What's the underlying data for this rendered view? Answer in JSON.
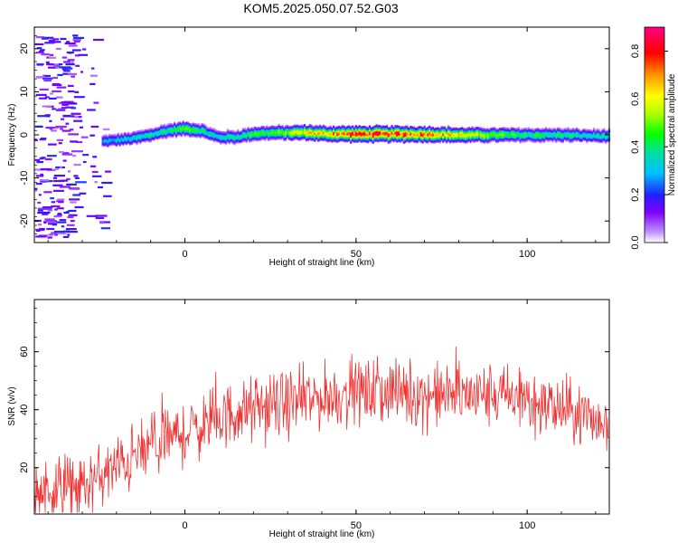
{
  "title": "KOM5.2025.050.07.52.G03",
  "chart_data": [
    {
      "type": "heatmap",
      "xlabel": "Height of straight line (km)",
      "ylabel": "Frequency (Hz)",
      "xlim": [
        -44,
        124
      ],
      "ylim": [
        -25,
        25
      ],
      "xticks": [
        0,
        50,
        100
      ],
      "yticks": [
        20,
        10,
        0,
        -10,
        -20
      ],
      "colorbar": {
        "label": "Normalized spectral amplitude",
        "range": [
          0,
          0.9
        ],
        "ticks": [
          "0.0",
          "0.2",
          "0.4",
          "0.6",
          "0.8"
        ],
        "tick_values": [
          0,
          0.2,
          0.4,
          0.6,
          0.8
        ]
      },
      "ridge": {
        "x": [
          -24,
          -20,
          -15,
          -10,
          -5,
          0,
          5,
          8,
          10,
          15,
          20,
          25,
          30,
          35,
          40,
          50,
          60,
          70,
          80,
          90,
          100,
          110,
          124
        ],
        "freq": [
          -1.5,
          -1.2,
          -0.8,
          0,
          1,
          1.5,
          1,
          0,
          -0.5,
          -0.5,
          0.3,
          0.5,
          0.5,
          0.6,
          0.3,
          0.2,
          0.2,
          0.2,
          0,
          0,
          0,
          0,
          -0.3
        ],
        "amplitude": [
          0.3,
          0.35,
          0.4,
          0.45,
          0.45,
          0.55,
          0.45,
          0.4,
          0.4,
          0.45,
          0.5,
          0.55,
          0.6,
          0.7,
          0.75,
          0.9,
          0.9,
          0.85,
          0.7,
          0.6,
          0.5,
          0.45,
          0.4
        ]
      }
    },
    {
      "type": "line",
      "xlabel": "Height of straight line (km)",
      "ylabel": "SNR (v/v)",
      "xlim": [
        -44,
        124
      ],
      "ylim": [
        4,
        78
      ],
      "xticks": [
        0,
        50,
        100
      ],
      "yticks": [
        20,
        40,
        60
      ],
      "color": "#f03030",
      "trend": {
        "x": [
          -44,
          -30,
          -20,
          -10,
          0,
          10,
          20,
          30,
          40,
          50,
          60,
          70,
          80,
          90,
          100,
          110,
          124
        ],
        "snr": [
          12,
          13,
          20,
          27,
          32,
          37,
          40,
          42,
          44,
          46,
          46,
          45,
          45,
          45,
          43,
          40,
          35
        ]
      }
    }
  ]
}
